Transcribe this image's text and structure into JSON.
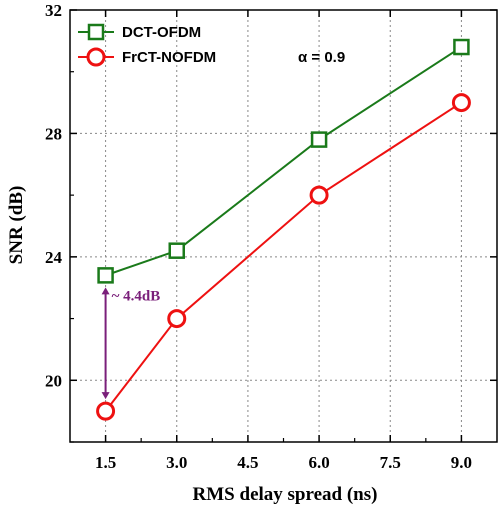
{
  "chart_data": {
    "type": "line",
    "xlabel": "RMS delay spread (ns)",
    "ylabel": "SNR (dB)",
    "xlim": [
      0.75,
      9.75
    ],
    "ylim": [
      18,
      32
    ],
    "xticks": [
      1.5,
      3.0,
      4.5,
      6.0,
      7.5,
      9.0
    ],
    "xtick_labels": [
      "1.5",
      "3.0",
      "4.5",
      "6.0",
      "7.5",
      "9.0"
    ],
    "yticks": [
      20,
      24,
      28,
      32
    ],
    "ytick_labels": [
      "20",
      "24",
      "28",
      "32"
    ],
    "grid": true,
    "legend_position": "top-left",
    "series": [
      {
        "name": "DCT-OFDM",
        "color": "#1a7a1a",
        "marker": "square",
        "x": [
          1.5,
          3.0,
          6.0,
          9.0
        ],
        "y": [
          23.4,
          24.2,
          27.8,
          30.8
        ]
      },
      {
        "name": "FrCT-NOFDM",
        "color": "#ee1111",
        "marker": "circle",
        "x": [
          1.5,
          3.0,
          6.0,
          9.0
        ],
        "y": [
          19.0,
          22.0,
          26.0,
          29.0
        ]
      }
    ],
    "legend_extra": "α = 0.9",
    "annotations": [
      {
        "text": "~ 4.4dB",
        "color": "#7a1f7a",
        "x": 1.5,
        "y_from": 23.4,
        "y_to": 19.0
      }
    ]
  }
}
